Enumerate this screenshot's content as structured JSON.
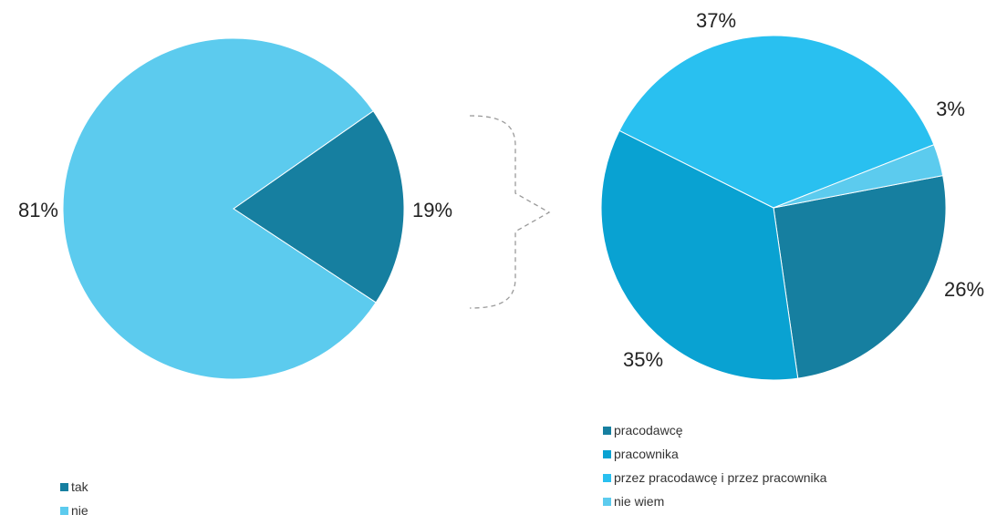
{
  "chart_data": [
    {
      "type": "pie",
      "title": "",
      "slices": [
        {
          "label": "tak",
          "value": 19,
          "display": "19%",
          "color": "#167fa0"
        },
        {
          "label": "nie",
          "value": 81,
          "display": "81%",
          "color": "#5ccbee"
        }
      ],
      "legend": {
        "position": "bottom-left",
        "items": [
          "tak",
          "nie"
        ]
      }
    },
    {
      "type": "pie",
      "title": "",
      "slices": [
        {
          "label": "pracodawcę",
          "value": 26,
          "display": "26%",
          "color": "#167fa0"
        },
        {
          "label": "pracownika",
          "value": 35,
          "display": "35%",
          "color": "#09a2d2"
        },
        {
          "label": "przez pracodawcę i przez pracownika",
          "value": 37,
          "display": "37%",
          "color": "#29c0f0"
        },
        {
          "label": "nie wiem",
          "value": 3,
          "display": "3%",
          "color": "#5ccbee"
        }
      ],
      "legend": {
        "position": "bottom-left",
        "items": [
          "pracodawcę",
          "pracownika",
          "przez pracodawcę i przez pracownika",
          "nie wiem"
        ]
      }
    }
  ],
  "connector": {
    "style": "dashed brace",
    "color": "#9a9a9a"
  }
}
